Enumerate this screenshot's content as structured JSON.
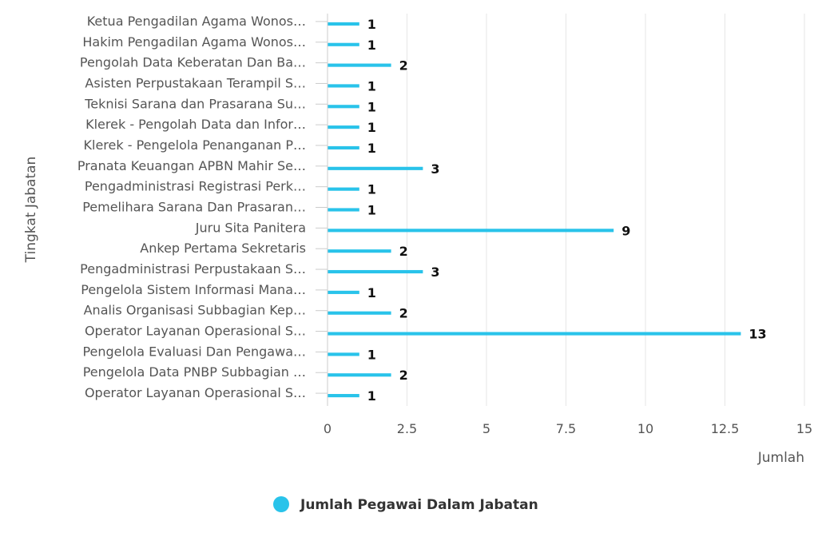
{
  "chart_data": {
    "type": "bar",
    "orientation": "horizontal",
    "categories": [
      "Ketua Pengadilan Agama Wonos…",
      "Hakim Pengadilan Agama Wonos…",
      "Pengolah Data Keberatan Dan Ba…",
      "Asisten Perpustakaan Terampil S…",
      "Teknisi Sarana dan Prasarana Su…",
      "Klerek - Pengolah Data dan Infor…",
      "Klerek - Pengelola Penanganan P…",
      "Pranata Keuangan APBN Mahir Se…",
      "Pengadministrasi Registrasi Perk…",
      "Pemelihara Sarana Dan Prasaran…",
      "Juru Sita Panitera",
      "Ankep Pertama Sekretaris",
      "Pengadministrasi Perpustakaan S…",
      "Pengelola Sistem Informasi Mana…",
      "Analis Organisasi Subbagian Kep…",
      "Operator Layanan Operasional S…",
      "Pengelola Evaluasi Dan Pengawa…",
      "Pengelola Data PNBP Subbagian …",
      "Operator Layanan Operasional S…"
    ],
    "series": [
      {
        "name": "Jumlah Pegawai Dalam Jabatan",
        "color": "#29c3ea",
        "values": [
          1,
          1,
          2,
          1,
          1,
          1,
          1,
          3,
          1,
          1,
          9,
          2,
          3,
          1,
          2,
          13,
          1,
          2,
          1
        ]
      }
    ],
    "xlabel": "Jumlah",
    "ylabel": "Tingkat Jabatan",
    "xlim": [
      0,
      15
    ],
    "ticks": [
      "0",
      "2.5",
      "5",
      "7.5",
      "10",
      "12.5",
      "15"
    ],
    "grid": true,
    "legend_position": "bottom-center"
  }
}
